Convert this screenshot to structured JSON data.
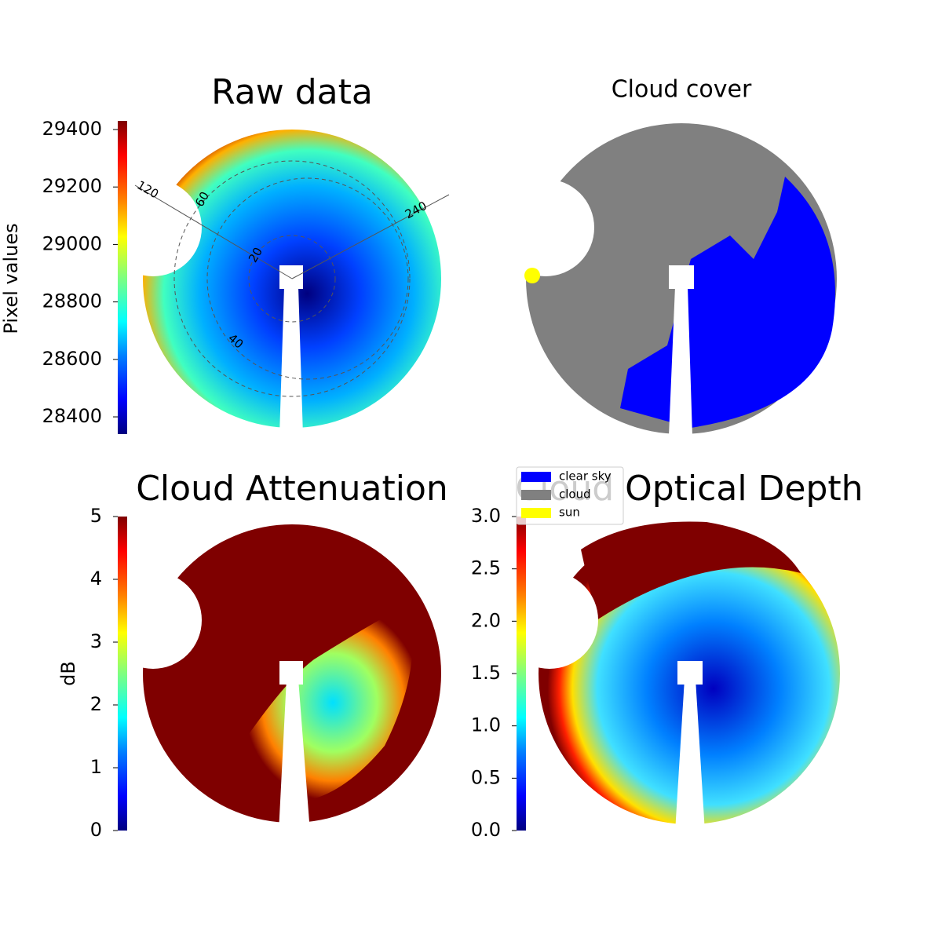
{
  "panels": [
    {
      "title": "Raw data",
      "colorbar": {
        "label": "Pixel values",
        "lim": [
          28340,
          29430
        ],
        "ticks": [
          28400,
          28600,
          28800,
          29000,
          29200,
          29400
        ]
      },
      "polar_labels": [
        "120",
        "60",
        "240",
        "20",
        "40"
      ]
    },
    {
      "title": "Cloud cover",
      "legend": [
        {
          "label": "clear sky",
          "color": "#0000ff"
        },
        {
          "label": "cloud",
          "color": "#808080"
        },
        {
          "label": "sun",
          "color": "#ffff00"
        }
      ]
    },
    {
      "title": "Cloud Attenuation",
      "colorbar": {
        "label": "dB",
        "lim": [
          0,
          5
        ],
        "ticks": [
          0,
          1,
          2,
          3,
          4,
          5
        ]
      }
    },
    {
      "title": "Cloud Optical Depth",
      "colorbar": {
        "lim": [
          0,
          3
        ],
        "ticks": [
          {
            "value": 0,
            "label": "0.0"
          },
          {
            "value": 0.5,
            "label": "0.5"
          },
          {
            "value": 1,
            "label": "1.0"
          },
          {
            "value": 1.5,
            "label": "1.5"
          },
          {
            "value": 2,
            "label": "2.0"
          },
          {
            "value": 2.5,
            "label": "2.5"
          },
          {
            "value": 3,
            "label": "3.0"
          }
        ]
      }
    }
  ]
}
